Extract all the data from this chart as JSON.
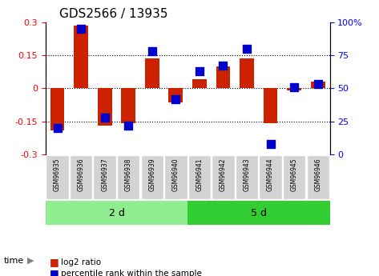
{
  "title": "GDS2566 / 13935",
  "samples": [
    "GSM96935",
    "GSM96936",
    "GSM96937",
    "GSM96938",
    "GSM96939",
    "GSM96940",
    "GSM96941",
    "GSM96942",
    "GSM96943",
    "GSM96944",
    "GSM96945",
    "GSM96946"
  ],
  "log2_ratio": [
    -0.19,
    0.285,
    -0.17,
    -0.16,
    0.135,
    -0.065,
    0.04,
    0.1,
    0.135,
    -0.16,
    -0.01,
    0.03
  ],
  "percentile_rank": [
    20,
    95,
    28,
    22,
    78,
    42,
    63,
    67,
    80,
    8,
    51,
    53
  ],
  "groups": [
    {
      "label": "2 d",
      "start": 0,
      "end": 6,
      "color": "#90EE90"
    },
    {
      "label": "5 d",
      "start": 6,
      "end": 12,
      "color": "#32CD32"
    }
  ],
  "ylim": [
    -0.3,
    0.3
  ],
  "yticks": [
    -0.3,
    -0.15,
    0.0,
    0.15,
    0.3
  ],
  "ytick_labels_left": [
    "-0.3",
    "-0.15",
    "0",
    "0.15",
    "0.3"
  ],
  "ytick_labels_right": [
    "0",
    "25",
    "50",
    "75",
    "100%"
  ],
  "dotted_lines": [
    -0.15,
    0.0,
    0.15
  ],
  "bar_color": "#CC2200",
  "dot_color": "#0000CC",
  "bar_width": 0.6,
  "dot_size": 60,
  "time_label": "time",
  "legend_bar_label": "log2 ratio",
  "legend_dot_label": "percentile rank within the sample",
  "background_color": "#ffffff",
  "plot_bg_color": "#ffffff"
}
